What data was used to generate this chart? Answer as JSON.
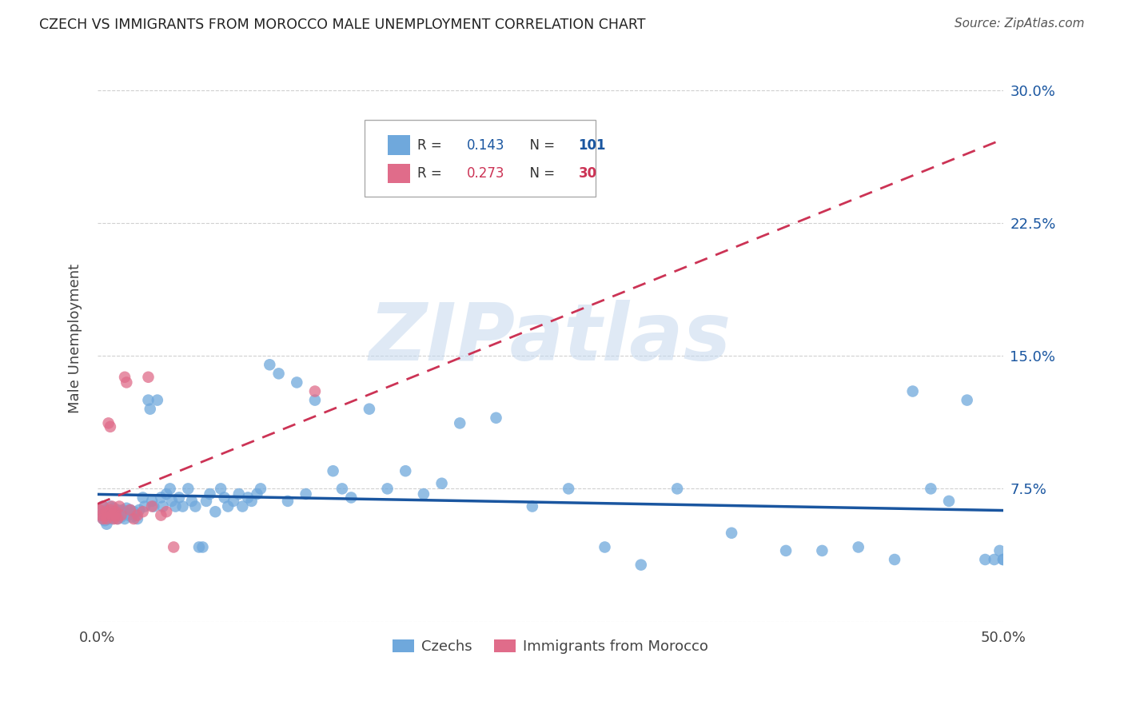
{
  "title": "CZECH VS IMMIGRANTS FROM MOROCCO MALE UNEMPLOYMENT CORRELATION CHART",
  "source": "Source: ZipAtlas.com",
  "ylabel": "Male Unemployment",
  "watermark": "ZIPatlas",
  "xlim": [
    0.0,
    0.5
  ],
  "ylim": [
    0.0,
    0.32
  ],
  "xticks": [
    0.0,
    0.1,
    0.2,
    0.3,
    0.4,
    0.5
  ],
  "xticklabels": [
    "0.0%",
    "",
    "",
    "",
    "",
    "50.0%"
  ],
  "yticks": [
    0.0,
    0.075,
    0.15,
    0.225,
    0.3
  ],
  "yticklabels": [
    "",
    "7.5%",
    "15.0%",
    "22.5%",
    "30.0%"
  ],
  "czechs_color": "#6fa8dc",
  "morocco_color": "#e06c8a",
  "czechs_line_color": "#1a56a0",
  "morocco_line_color": "#cc3355",
  "legend_czechs_R": "0.143",
  "legend_czechs_N": "101",
  "legend_morocco_R": "0.273",
  "legend_morocco_N": "30",
  "czechs_x": [
    0.001,
    0.002,
    0.003,
    0.003,
    0.004,
    0.004,
    0.005,
    0.005,
    0.006,
    0.006,
    0.007,
    0.007,
    0.008,
    0.008,
    0.009,
    0.009,
    0.01,
    0.01,
    0.011,
    0.011,
    0.012,
    0.013,
    0.014,
    0.015,
    0.015,
    0.016,
    0.017,
    0.018,
    0.019,
    0.02,
    0.021,
    0.022,
    0.023,
    0.025,
    0.026,
    0.028,
    0.029,
    0.03,
    0.031,
    0.033,
    0.035,
    0.036,
    0.038,
    0.04,
    0.041,
    0.043,
    0.045,
    0.047,
    0.05,
    0.052,
    0.054,
    0.056,
    0.058,
    0.06,
    0.062,
    0.065,
    0.068,
    0.07,
    0.072,
    0.075,
    0.078,
    0.08,
    0.083,
    0.085,
    0.088,
    0.09,
    0.095,
    0.1,
    0.105,
    0.11,
    0.115,
    0.12,
    0.13,
    0.135,
    0.14,
    0.15,
    0.16,
    0.17,
    0.18,
    0.19,
    0.2,
    0.22,
    0.24,
    0.26,
    0.28,
    0.3,
    0.32,
    0.35,
    0.38,
    0.4,
    0.42,
    0.44,
    0.45,
    0.46,
    0.47,
    0.48,
    0.49,
    0.495,
    0.498,
    0.5,
    0.5
  ],
  "czechs_y": [
    0.063,
    0.06,
    0.058,
    0.065,
    0.057,
    0.062,
    0.055,
    0.063,
    0.06,
    0.058,
    0.062,
    0.065,
    0.058,
    0.061,
    0.059,
    0.064,
    0.062,
    0.06,
    0.058,
    0.063,
    0.061,
    0.059,
    0.063,
    0.062,
    0.058,
    0.064,
    0.06,
    0.063,
    0.059,
    0.062,
    0.06,
    0.058,
    0.063,
    0.07,
    0.065,
    0.125,
    0.12,
    0.068,
    0.065,
    0.125,
    0.07,
    0.065,
    0.072,
    0.075,
    0.068,
    0.065,
    0.07,
    0.065,
    0.075,
    0.068,
    0.065,
    0.042,
    0.042,
    0.068,
    0.072,
    0.062,
    0.075,
    0.07,
    0.065,
    0.068,
    0.072,
    0.065,
    0.07,
    0.068,
    0.072,
    0.075,
    0.145,
    0.14,
    0.068,
    0.135,
    0.072,
    0.125,
    0.085,
    0.075,
    0.07,
    0.12,
    0.075,
    0.085,
    0.072,
    0.078,
    0.112,
    0.115,
    0.065,
    0.075,
    0.042,
    0.032,
    0.075,
    0.05,
    0.04,
    0.04,
    0.042,
    0.035,
    0.13,
    0.075,
    0.068,
    0.125,
    0.035,
    0.035,
    0.04,
    0.035,
    0.035
  ],
  "morocco_x": [
    0.001,
    0.002,
    0.003,
    0.003,
    0.004,
    0.005,
    0.005,
    0.006,
    0.007,
    0.007,
    0.008,
    0.008,
    0.009,
    0.01,
    0.01,
    0.011,
    0.012,
    0.013,
    0.015,
    0.016,
    0.018,
    0.02,
    0.022,
    0.025,
    0.028,
    0.03,
    0.035,
    0.038,
    0.042,
    0.12
  ],
  "morocco_y": [
    0.063,
    0.06,
    0.058,
    0.065,
    0.06,
    0.058,
    0.062,
    0.112,
    0.11,
    0.063,
    0.06,
    0.065,
    0.058,
    0.06,
    0.062,
    0.058,
    0.065,
    0.06,
    0.138,
    0.135,
    0.063,
    0.058,
    0.06,
    0.062,
    0.138,
    0.065,
    0.06,
    0.062,
    0.042,
    0.13
  ],
  "grid_color": "#d0d0d0"
}
